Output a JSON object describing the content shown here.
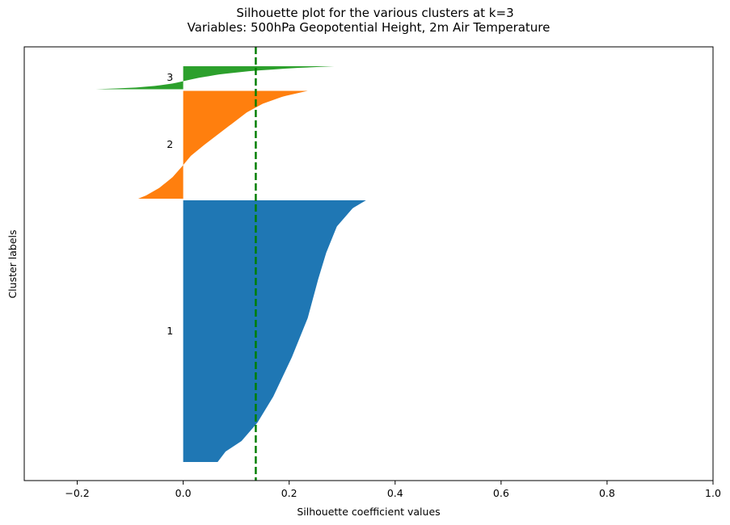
{
  "chart_data": {
    "type": "bar",
    "orientation": "horizontal",
    "title": "Silhouette plot for the various clusters at k=3",
    "subtitle": "Variables: 500hPa Geopotential Height, 2m Air Temperature",
    "xlabel": "Silhouette coefficient values",
    "ylabel": "Cluster labels",
    "xlim": [
      -0.3,
      1.0
    ],
    "xticks": [
      -0.2,
      0.0,
      0.2,
      0.4,
      0.6,
      0.8,
      1.0
    ],
    "xtick_labels": [
      "−0.2",
      "0.0",
      "0.2",
      "0.4",
      "0.6",
      "0.8",
      "1.0"
    ],
    "yticks_visible": false,
    "grid": false,
    "average_silhouette": 0.137,
    "average_line_color": "#008000",
    "clusters": [
      {
        "label": "1",
        "color": "#1f77b4",
        "size": 740,
        "profile": [
          [
            0,
            0.345
          ],
          [
            0.03,
            0.32
          ],
          [
            0.1,
            0.29
          ],
          [
            0.2,
            0.27
          ],
          [
            0.3,
            0.255
          ],
          [
            0.45,
            0.235
          ],
          [
            0.6,
            0.205
          ],
          [
            0.75,
            0.17
          ],
          [
            0.85,
            0.14
          ],
          [
            0.92,
            0.11
          ],
          [
            0.96,
            0.08
          ],
          [
            1,
            0.065
          ]
        ]
      },
      {
        "label": "2",
        "color": "#ff7f0e",
        "size": 305,
        "profile": [
          [
            0,
            0.235
          ],
          [
            0.05,
            0.19
          ],
          [
            0.12,
            0.15
          ],
          [
            0.2,
            0.12
          ],
          [
            0.35,
            0.08
          ],
          [
            0.5,
            0.04
          ],
          [
            0.6,
            0.015
          ],
          [
            0.7,
            -0.002
          ],
          [
            0.8,
            -0.02
          ],
          [
            0.9,
            -0.045
          ],
          [
            0.97,
            -0.07
          ],
          [
            1,
            -0.085
          ]
        ]
      },
      {
        "label": "3",
        "color": "#2ca02c",
        "size": 65,
        "profile": [
          [
            0,
            0.285
          ],
          [
            0.08,
            0.21
          ],
          [
            0.2,
            0.13
          ],
          [
            0.35,
            0.07
          ],
          [
            0.5,
            0.03
          ],
          [
            0.6,
            0.01
          ],
          [
            0.68,
            -0.005
          ],
          [
            0.75,
            -0.02
          ],
          [
            0.85,
            -0.05
          ],
          [
            0.93,
            -0.09
          ],
          [
            1,
            -0.165
          ]
        ]
      }
    ]
  }
}
